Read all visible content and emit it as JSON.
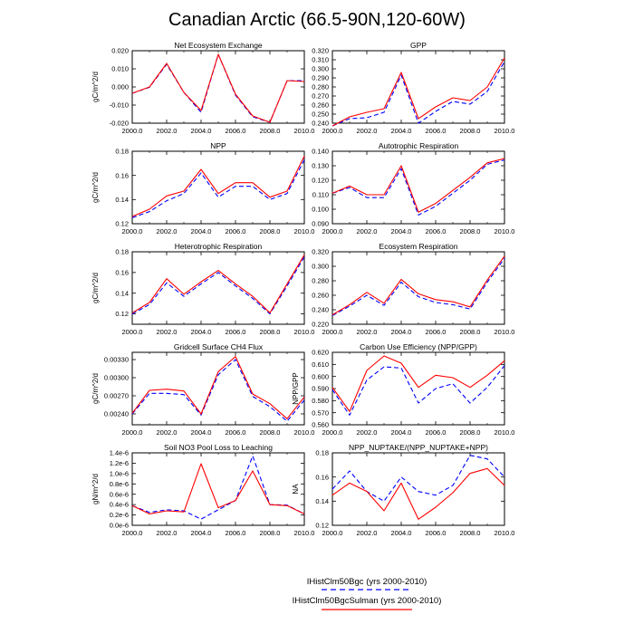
{
  "figure": {
    "title": "Canadian Arctic (66.5-90N,120-60W)",
    "legend": [
      {
        "label": "IHistClm50Bgc (yrs 2000-2010)",
        "color": "#0000ff",
        "dash": true
      },
      {
        "label": "IHistClm50BgcSulman (yrs 2000-2010)",
        "color": "#ff0000",
        "dash": false
      }
    ]
  },
  "chart_data": [
    {
      "type": "line",
      "title": "Net Ecosystem Exchange",
      "ylabel": "gC/m^2/d",
      "x": [
        2000,
        2001,
        2002,
        2003,
        2004,
        2005,
        2006,
        2007,
        2008,
        2009,
        2010
      ],
      "xlim": [
        2000,
        2010
      ],
      "xticks": [
        "2000.0",
        "2002.0",
        "2004.0",
        "2006.0",
        "2008.0",
        "2010.0"
      ],
      "ylim": [
        -0.02,
        0.02
      ],
      "yticks": [
        "-0.020",
        "-0.010",
        "0.000",
        "0.010",
        "0.020"
      ],
      "series": [
        {
          "color": "#0000ff",
          "dash": true,
          "values": [
            -0.0035,
            -0.0002,
            0.0125,
            -0.003,
            -0.014,
            0.018,
            -0.0045,
            -0.0165,
            -0.0195,
            0.0035,
            0.0035
          ]
        },
        {
          "color": "#ff0000",
          "dash": false,
          "values": [
            -0.0035,
            0.0,
            0.013,
            -0.003,
            -0.013,
            0.018,
            -0.004,
            -0.016,
            -0.0195,
            0.0035,
            0.003
          ]
        }
      ]
    },
    {
      "type": "line",
      "title": "GPP",
      "ylabel": "",
      "x": [
        2000,
        2001,
        2002,
        2003,
        2004,
        2005,
        2006,
        2007,
        2008,
        2009,
        2010
      ],
      "xlim": [
        2000,
        2010
      ],
      "xticks": [
        "2000.0",
        "2002.0",
        "2004.0",
        "2006.0",
        "2008.0",
        "2010.0"
      ],
      "ylim": [
        0.24,
        0.32
      ],
      "yticks": [
        "0.240",
        "0.250",
        "0.260",
        "0.270",
        "0.280",
        "0.290",
        "0.300",
        "0.310",
        "0.320"
      ],
      "series": [
        {
          "color": "#0000ff",
          "dash": true,
          "values": [
            0.237,
            0.245,
            0.246,
            0.252,
            0.293,
            0.24,
            0.253,
            0.264,
            0.261,
            0.275,
            0.308
          ]
        },
        {
          "color": "#ff0000",
          "dash": false,
          "values": [
            0.237,
            0.247,
            0.252,
            0.256,
            0.296,
            0.245,
            0.258,
            0.268,
            0.265,
            0.28,
            0.312
          ]
        }
      ]
    },
    {
      "type": "line",
      "title": "NPP",
      "ylabel": "gC/m^2/d",
      "x": [
        2000,
        2001,
        2002,
        2003,
        2004,
        2005,
        2006,
        2007,
        2008,
        2009,
        2010
      ],
      "xlim": [
        2000,
        2010
      ],
      "xticks": [
        "2000.0",
        "2002.0",
        "2004.0",
        "2006.0",
        "2008.0",
        "2010.0"
      ],
      "ylim": [
        0.12,
        0.18
      ],
      "yticks": [
        "0.12",
        "0.14",
        "0.16",
        "0.18"
      ],
      "series": [
        {
          "color": "#0000ff",
          "dash": true,
          "values": [
            0.125,
            0.13,
            0.139,
            0.145,
            0.162,
            0.142,
            0.151,
            0.151,
            0.14,
            0.145,
            0.173
          ]
        },
        {
          "color": "#ff0000",
          "dash": false,
          "values": [
            0.126,
            0.132,
            0.143,
            0.147,
            0.165,
            0.145,
            0.154,
            0.154,
            0.142,
            0.147,
            0.176
          ]
        }
      ]
    },
    {
      "type": "line",
      "title": "Autotrophic Respiration",
      "ylabel": "",
      "x": [
        2000,
        2001,
        2002,
        2003,
        2004,
        2005,
        2006,
        2007,
        2008,
        2009,
        2010
      ],
      "xlim": [
        2000,
        2010
      ],
      "xticks": [
        "2000.0",
        "2002.0",
        "2004.0",
        "2006.0",
        "2008.0",
        "2010.0"
      ],
      "ylim": [
        0.09,
        0.14
      ],
      "yticks": [
        "0.090",
        "0.100",
        "0.110",
        "0.120",
        "0.130",
        "0.140"
      ],
      "series": [
        {
          "color": "#0000ff",
          "dash": true,
          "values": [
            0.111,
            0.115,
            0.108,
            0.108,
            0.128,
            0.096,
            0.102,
            0.111,
            0.12,
            0.131,
            0.134
          ]
        },
        {
          "color": "#ff0000",
          "dash": false,
          "values": [
            0.111,
            0.116,
            0.11,
            0.11,
            0.13,
            0.098,
            0.104,
            0.113,
            0.122,
            0.132,
            0.135
          ]
        }
      ]
    },
    {
      "type": "line",
      "title": "Heterotrophic Respiration",
      "ylabel": "gC/m^2/d",
      "x": [
        2000,
        2001,
        2002,
        2003,
        2004,
        2005,
        2006,
        2007,
        2008,
        2009,
        2010
      ],
      "xlim": [
        2000,
        2010
      ],
      "xticks": [
        "2000.0",
        "2002.0",
        "2004.0",
        "2006.0",
        "2008.0",
        "2010.0"
      ],
      "ylim": [
        0.11,
        0.18
      ],
      "yticks": [
        "0.12",
        "0.14",
        "0.16",
        "0.18"
      ],
      "series": [
        {
          "color": "#0000ff",
          "dash": true,
          "values": [
            0.12,
            0.129,
            0.15,
            0.137,
            0.149,
            0.16,
            0.147,
            0.135,
            0.12,
            0.147,
            0.175
          ]
        },
        {
          "color": "#ff0000",
          "dash": false,
          "values": [
            0.121,
            0.131,
            0.154,
            0.139,
            0.151,
            0.162,
            0.149,
            0.137,
            0.121,
            0.149,
            0.177
          ]
        }
      ]
    },
    {
      "type": "line",
      "title": "Ecosystem Respiration",
      "ylabel": "",
      "x": [
        2000,
        2001,
        2002,
        2003,
        2004,
        2005,
        2006,
        2007,
        2008,
        2009,
        2010
      ],
      "xlim": [
        2000,
        2010
      ],
      "xticks": [
        "2000.0",
        "2002.0",
        "2004.0",
        "2006.0",
        "2008.0",
        "2010.0"
      ],
      "ylim": [
        0.22,
        0.32
      ],
      "yticks": [
        "0.220",
        "0.240",
        "0.260",
        "0.280",
        "0.300",
        "0.320"
      ],
      "series": [
        {
          "color": "#0000ff",
          "dash": true,
          "values": [
            0.232,
            0.245,
            0.26,
            0.246,
            0.278,
            0.258,
            0.25,
            0.247,
            0.241,
            0.278,
            0.311
          ]
        },
        {
          "color": "#ff0000",
          "dash": false,
          "values": [
            0.233,
            0.247,
            0.264,
            0.249,
            0.282,
            0.262,
            0.254,
            0.251,
            0.244,
            0.281,
            0.314
          ]
        }
      ]
    },
    {
      "type": "line",
      "title": "Gridcell Surface CH4 Flux",
      "ylabel": "gC/m^2/d",
      "x": [
        2000,
        2001,
        2002,
        2003,
        2004,
        2005,
        2006,
        2007,
        2008,
        2009,
        2010
      ],
      "xlim": [
        2000,
        2010
      ],
      "xticks": [
        "2000.0",
        "2002.0",
        "2004.0",
        "2006.0",
        "2008.0",
        "2010.0"
      ],
      "ylim": [
        0.00222,
        0.00342
      ],
      "yticks": [
        "0.00240",
        "0.00270",
        "0.00300",
        "0.00330"
      ],
      "series": [
        {
          "color": "#0000ff",
          "dash": true,
          "values": [
            0.0024,
            0.00274,
            0.00274,
            0.00272,
            0.00238,
            0.00305,
            0.0033,
            0.00269,
            0.00252,
            0.00228,
            0.00263
          ]
        },
        {
          "color": "#ff0000",
          "dash": false,
          "values": [
            0.00241,
            0.00279,
            0.00281,
            0.00278,
            0.0024,
            0.0031,
            0.00335,
            0.00273,
            0.00257,
            0.00232,
            0.00268
          ]
        }
      ]
    },
    {
      "type": "line",
      "title": "Carbon Use Efficiency (NPP/GPP)",
      "ylabel": "NPP/GPP",
      "x": [
        2000,
        2001,
        2002,
        2003,
        2004,
        2005,
        2006,
        2007,
        2008,
        2009,
        2010
      ],
      "xlim": [
        2000,
        2010
      ],
      "xticks": [
        "2000.0",
        "2002.0",
        "2004.0",
        "2006.0",
        "2008.0",
        "2010.0"
      ],
      "ylim": [
        0.56,
        0.62
      ],
      "yticks": [
        "0.560",
        "0.570",
        "0.580",
        "0.590",
        "0.600",
        "0.610",
        "0.620"
      ],
      "series": [
        {
          "color": "#0000ff",
          "dash": true,
          "values": [
            0.589,
            0.568,
            0.597,
            0.608,
            0.607,
            0.578,
            0.59,
            0.594,
            0.578,
            0.591,
            0.609
          ]
        },
        {
          "color": "#ff0000",
          "dash": false,
          "values": [
            0.591,
            0.571,
            0.605,
            0.617,
            0.611,
            0.591,
            0.601,
            0.599,
            0.591,
            0.601,
            0.613
          ]
        }
      ]
    },
    {
      "type": "line",
      "title": "Soil NO3 Pool Loss to Leaching",
      "ylabel": "gN/m^2/d",
      "x": [
        2000,
        2001,
        2002,
        2003,
        2004,
        2005,
        2006,
        2007,
        2008,
        2009,
        2010
      ],
      "xlim": [
        2000,
        2010
      ],
      "xticks": [
        "2000.0",
        "2002.0",
        "2004.0",
        "2006.0",
        "2008.0",
        "2010.0"
      ],
      "ylim": [
        0.0,
        1.4e-06
      ],
      "yticks": [
        "0.0e-6",
        "0.2e-6",
        "0.4e-6",
        "0.6e-6",
        "0.8e-6",
        "1.0e-6",
        "1.2e-6",
        "1.4e-6"
      ],
      "ytick_values": [
        0.0,
        2e-07,
        4e-07,
        6e-07,
        8e-07,
        1e-06,
        1.2e-06,
        1.4e-06
      ],
      "series": [
        {
          "color": "#0000ff",
          "dash": true,
          "values": [
            3.8e-07,
            2.5e-07,
            3e-07,
            2.8e-07,
            1.2e-07,
            3e-07,
            4.8e-07,
            1.34e-06,
            4e-07,
            3.9e-07,
            2.2e-07
          ]
        },
        {
          "color": "#ff0000",
          "dash": false,
          "values": [
            3.8e-07,
            2.2e-07,
            2.8e-07,
            2.6e-07,
            1.19e-06,
            3.4e-07,
            4.8e-07,
            1.05e-06,
            4e-07,
            3.8e-07,
            2.2e-07
          ]
        }
      ]
    },
    {
      "type": "line",
      "title": "NPP_NUPTAKE/(NPP_NUPTAKE+NPP)",
      "ylabel": "NA",
      "x": [
        2000,
        2001,
        2002,
        2003,
        2004,
        2005,
        2006,
        2007,
        2008,
        2009,
        2010
      ],
      "xlim": [
        2000,
        2010
      ],
      "xticks": [
        "2000.0",
        "2002.0",
        "2004.0",
        "2006.0",
        "2008.0",
        "2010.0"
      ],
      "ylim": [
        0.12,
        0.18
      ],
      "yticks": [
        "0.12",
        "0.14",
        "0.16",
        "0.18"
      ],
      "series": [
        {
          "color": "#0000ff",
          "dash": true,
          "values": [
            0.15,
            0.165,
            0.148,
            0.14,
            0.16,
            0.148,
            0.145,
            0.153,
            0.178,
            0.175,
            0.16
          ]
        },
        {
          "color": "#ff0000",
          "dash": false,
          "values": [
            0.145,
            0.155,
            0.148,
            0.132,
            0.155,
            0.125,
            0.135,
            0.147,
            0.163,
            0.167,
            0.153
          ]
        }
      ]
    }
  ]
}
